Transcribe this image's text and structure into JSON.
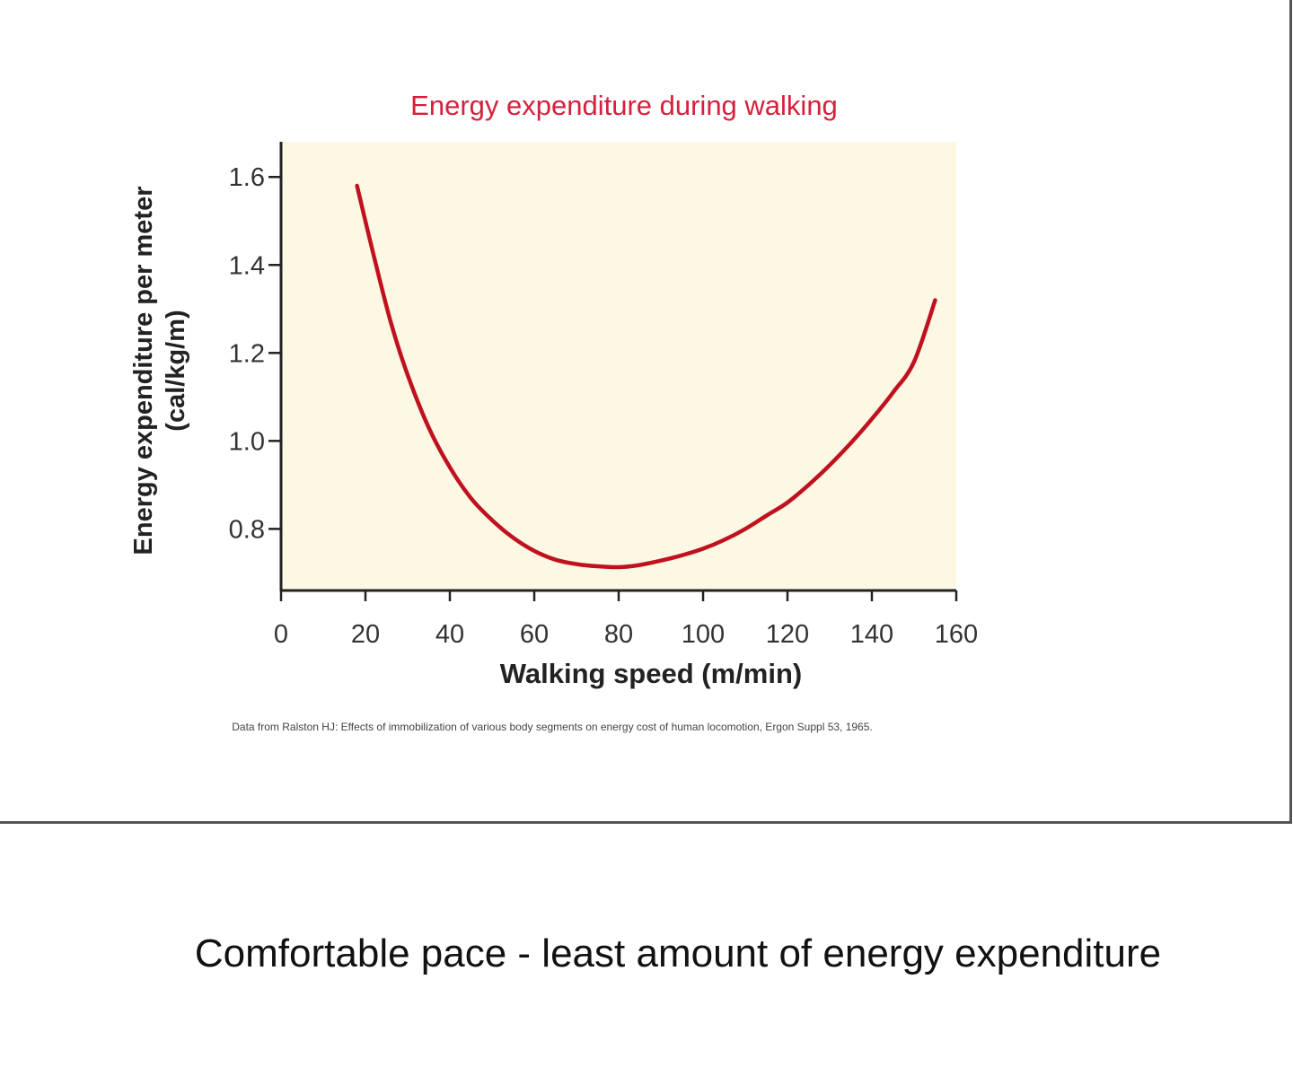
{
  "slide": {
    "caption": "Comfortable pace - least amount of energy expenditure",
    "source_note": "Data from Ralston HJ: Effects of immobilization of various body segments on energy cost of human locomotion, Ergon Suppl 53, 1965."
  },
  "colors": {
    "plot_background": "#fdf8e4",
    "curve": "#c0111f",
    "title": "#d4213d",
    "axis": "#222222"
  },
  "chart_data": {
    "type": "line",
    "title": "Energy expenditure during walking",
    "xlabel": "Walking speed (m/min)",
    "ylabel_line1": "Energy expenditure per meter",
    "ylabel_line2": "(cal/kg/m)",
    "xlim": [
      0,
      160
    ],
    "ylim": [
      0.66,
      1.68
    ],
    "x_ticks": [
      0,
      20,
      40,
      60,
      80,
      100,
      120,
      140,
      160
    ],
    "y_ticks": [
      0.8,
      1.0,
      1.2,
      1.4,
      1.6
    ],
    "x_tick_labels": [
      "0",
      "20",
      "40",
      "60",
      "80",
      "100",
      "120",
      "140",
      "160"
    ],
    "y_tick_labels": [
      "0.8",
      "1.0",
      "1.2",
      "1.4",
      "1.6"
    ],
    "grid": false,
    "series": [
      {
        "x": [
          18,
          22,
          26,
          30,
          35,
          40,
          45,
          50,
          55,
          60,
          65,
          70,
          75,
          80,
          85,
          90,
          95,
          100,
          105,
          110,
          115,
          120,
          125,
          130,
          135,
          140,
          145,
          150,
          155
        ],
        "y": [
          1.58,
          1.42,
          1.27,
          1.15,
          1.03,
          0.94,
          0.87,
          0.82,
          0.78,
          0.75,
          0.73,
          0.72,
          0.715,
          0.713,
          0.718,
          0.728,
          0.74,
          0.755,
          0.775,
          0.8,
          0.83,
          0.86,
          0.9,
          0.945,
          0.995,
          1.05,
          1.11,
          1.18,
          1.32
        ]
      }
    ]
  }
}
